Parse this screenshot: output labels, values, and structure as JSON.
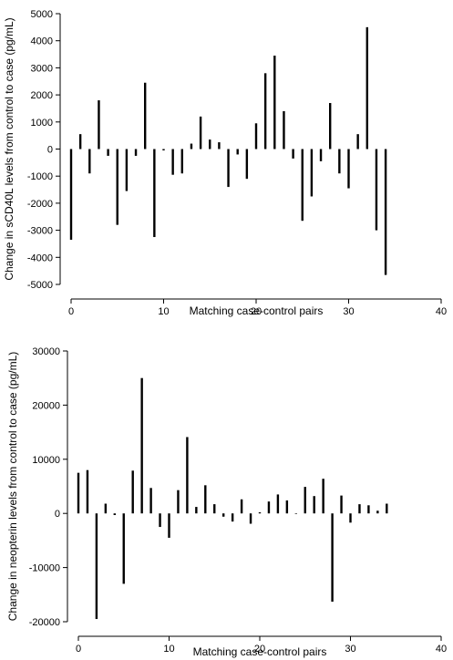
{
  "chart_data": [
    {
      "type": "bar",
      "title": "",
      "xlabel": "Matching case-control pairs",
      "ylabel": "Change in sCD40L levels from control to case (pg/mL)",
      "xlim": [
        0,
        40
      ],
      "ylim": [
        -5000,
        5000
      ],
      "xticks": [
        0,
        10,
        20,
        30,
        40
      ],
      "yticks": [
        -5000,
        -4000,
        -3000,
        -2000,
        -1000,
        0,
        1000,
        2000,
        3000,
        4000,
        5000
      ],
      "grid": false,
      "series": [
        {
          "x": [
            0,
            1,
            2,
            3,
            4,
            5,
            6,
            7,
            8,
            9,
            10,
            11,
            12,
            13,
            14,
            15,
            16,
            17,
            18,
            19,
            20,
            21,
            22,
            23,
            24,
            25,
            26,
            27,
            28,
            29,
            30,
            31,
            32,
            33,
            34
          ],
          "values": [
            -3350,
            550,
            -900,
            1800,
            -250,
            -2800,
            -1550,
            -250,
            2450,
            -3250,
            -50,
            -950,
            -900,
            200,
            1200,
            350,
            250,
            -1400,
            -200,
            -1100,
            950,
            2800,
            3450,
            1400,
            -350,
            -2650,
            -1750,
            -450,
            1700,
            -900,
            -1450,
            550,
            4500,
            -3000,
            -4650
          ]
        }
      ]
    },
    {
      "type": "bar",
      "title": "",
      "xlabel": "Matching case-control pairs",
      "ylabel": "Change in neopterin levels from control to case (pg/mL)",
      "xlim": [
        0,
        40
      ],
      "ylim": [
        -20000,
        30000
      ],
      "xticks": [
        0,
        10,
        20,
        30,
        40
      ],
      "yticks": [
        -20000,
        -10000,
        0,
        10000,
        20000,
        30000
      ],
      "grid": false,
      "series": [
        {
          "x": [
            0,
            1,
            2,
            3,
            4,
            5,
            6,
            7,
            8,
            9,
            10,
            11,
            12,
            13,
            14,
            15,
            16,
            17,
            18,
            19,
            20,
            21,
            22,
            23,
            24,
            25,
            26,
            27,
            28,
            29,
            30,
            31,
            32,
            33,
            34
          ],
          "values": [
            7500,
            8000,
            -19500,
            1800,
            -300,
            -13000,
            7900,
            25000,
            4700,
            -2500,
            -4500,
            4300,
            14100,
            1200,
            5200,
            1700,
            -600,
            -1500,
            2600,
            -1900,
            200,
            2200,
            3500,
            2400,
            0,
            4900,
            3200,
            6400,
            -16300,
            3300,
            -1700,
            1700,
            1500,
            500,
            1800
          ]
        }
      ]
    }
  ]
}
